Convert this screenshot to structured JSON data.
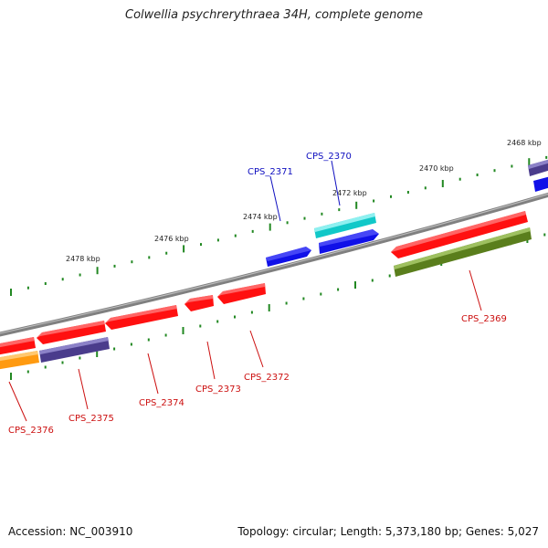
{
  "title": "Colwellia psychrerythraea 34H, complete genome",
  "footer": {
    "accession": "Accession: NC_003910",
    "summary": "Topology: circular; Length: 5,373,180 bp; Genes: 5,027"
  },
  "colors": {
    "backbone": "#808080",
    "tick_forward": "#228822",
    "tick_reverse": "#228822",
    "label_forward": "#1010c0",
    "label_reverse": "#cc1010",
    "red": "#ff1010",
    "blue": "#1010e8",
    "navy": "#4a3c8c",
    "cyan": "#10c8c8",
    "olive": "#5a7e1c",
    "orange": "#ff9a10"
  },
  "scale_labels": [
    "2468 kbp",
    "2470 kbp",
    "2472 kbp",
    "2474 kbp",
    "2476 kbp",
    "2478 kbp"
  ],
  "gene_labels": {
    "forward": [
      "CPS_2370",
      "CPS_2371"
    ],
    "reverse": [
      "CPS_2369",
      "CPS_2372",
      "CPS_2373",
      "CPS_2374",
      "CPS_2375",
      "CPS_2376"
    ]
  }
}
